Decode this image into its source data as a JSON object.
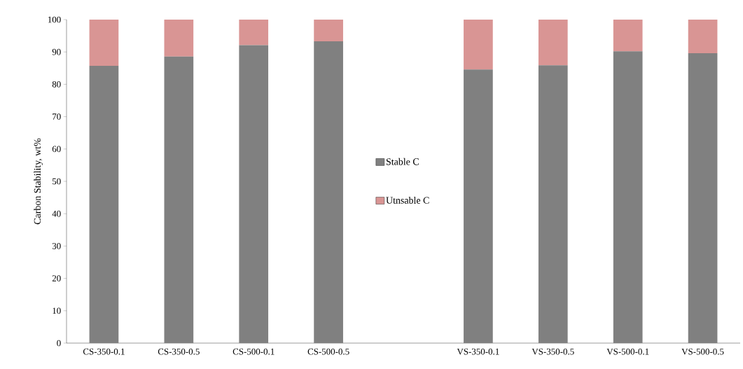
{
  "chart_data": {
    "type": "bar",
    "stacked": true,
    "ylabel": "Carbon Stability,  wt%",
    "categories": [
      "CS-350-0.1",
      "CS-350-0.5",
      "CS-500-0.1",
      "CS-500-0.5",
      null,
      "VS-350-0.1",
      "VS-350-0.5",
      "VS-500-0.1",
      "VS-500-0.5"
    ],
    "series": [
      {
        "name": "Stable C",
        "color": "#808080",
        "values": [
          85.7,
          88.6,
          92.1,
          93.3,
          null,
          84.6,
          85.9,
          90.2,
          89.6
        ]
      },
      {
        "name": "Utnsable C",
        "color": "#d99594",
        "values": [
          14.3,
          11.4,
          7.9,
          6.7,
          null,
          15.4,
          14.1,
          9.8,
          10.4
        ]
      }
    ],
    "ylim": [
      0,
      100
    ],
    "yticks": [
      0,
      10,
      20,
      30,
      40,
      50,
      60,
      70,
      80,
      90,
      100
    ],
    "legend": "center",
    "grid": false
  }
}
